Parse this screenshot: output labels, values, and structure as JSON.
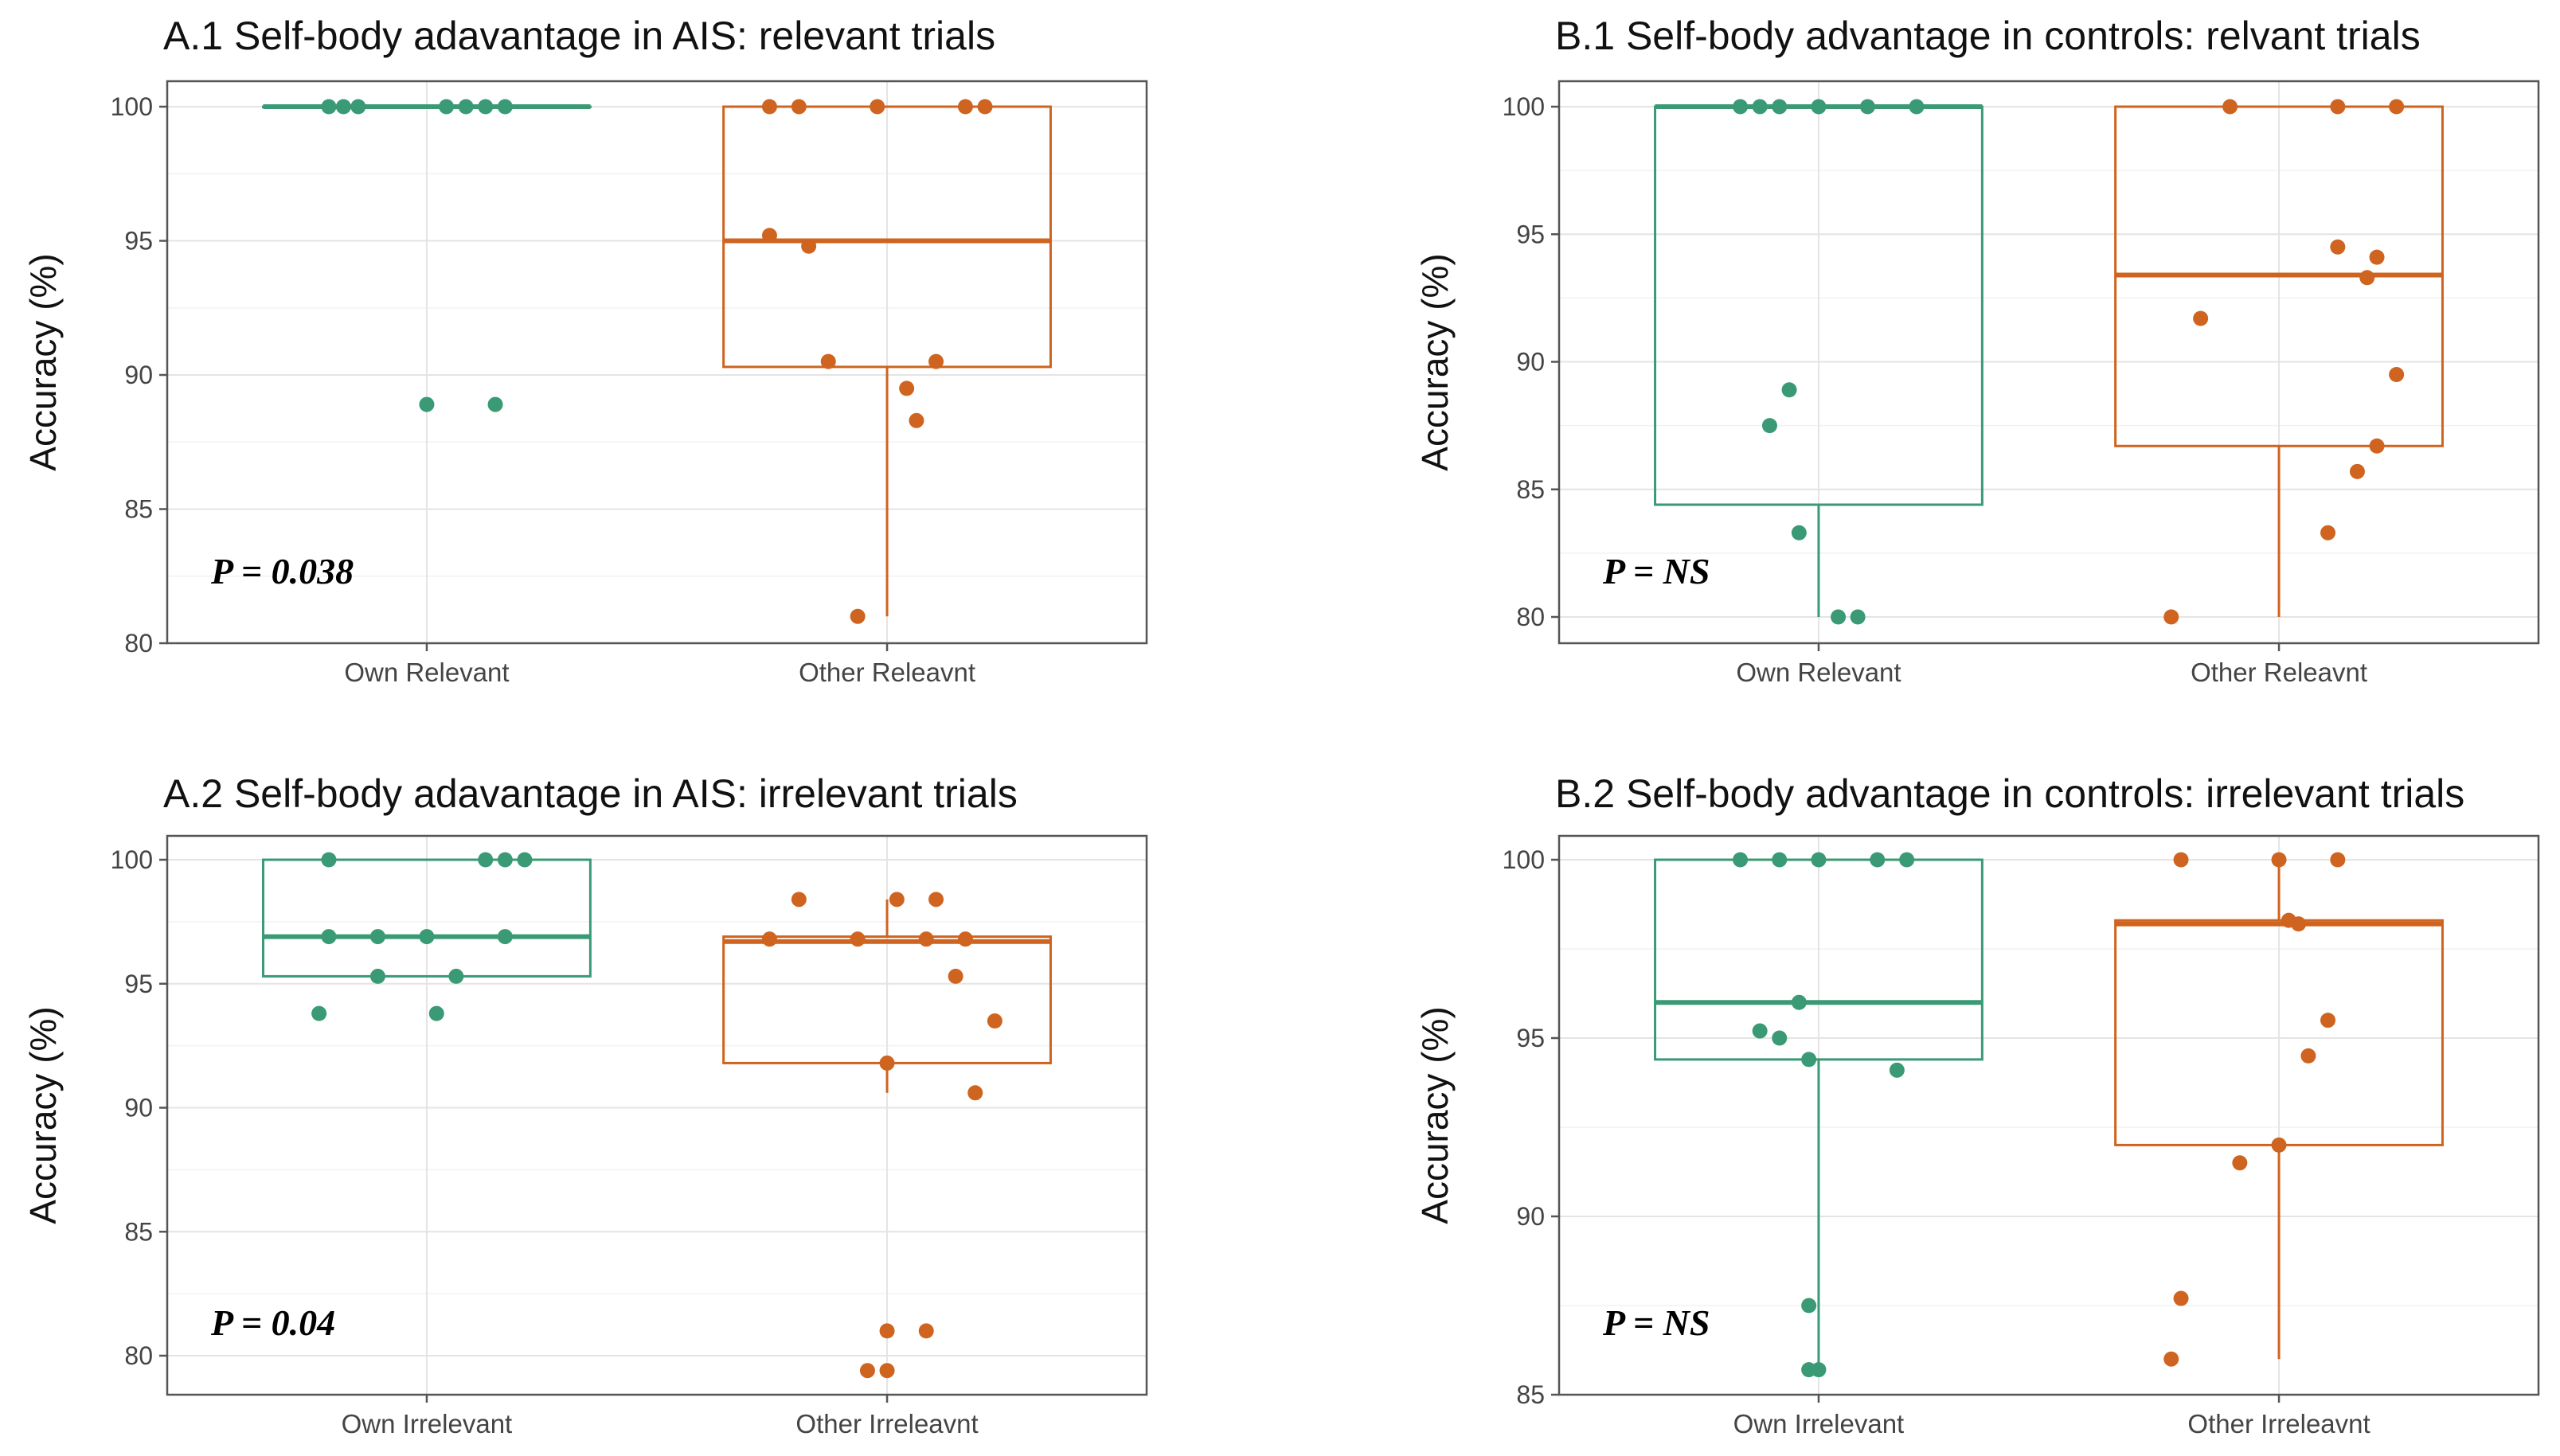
{
  "colors": {
    "own": "#3a9a76",
    "other": "#cf6420"
  },
  "chart_data": [
    {
      "type": "boxplot",
      "title": "A.1 Self-body adavantage in AIS: relevant trials",
      "ylabel": "Accuracy (%)",
      "xlabel": "",
      "ylim": [
        80,
        100
      ],
      "yticks": [
        80,
        85,
        90,
        95,
        100
      ],
      "annotation": "P = 0.038",
      "categories": [
        "Own Relevant",
        "Other Releavnt"
      ],
      "series": [
        {
          "name": "Own Relevant",
          "color_key": "own",
          "box": {
            "min": 100,
            "q1": 100,
            "median": 100,
            "q3": 100,
            "max": 100
          },
          "points": [
            {
              "x": -0.1,
              "y": 100
            },
            {
              "x": -0.085,
              "y": 100
            },
            {
              "x": -0.07,
              "y": 100
            },
            {
              "x": 0.02,
              "y": 100
            },
            {
              "x": 0.04,
              "y": 100
            },
            {
              "x": 0.06,
              "y": 100
            },
            {
              "x": 0.08,
              "y": 100
            },
            {
              "x": 0.0,
              "y": 88.9
            },
            {
              "x": 0.07,
              "y": 88.9
            }
          ]
        },
        {
          "name": "Other Releavnt",
          "color_key": "other",
          "box": {
            "min": 81,
            "q1": 90.3,
            "median": 95,
            "q3": 100,
            "max": 100
          },
          "points": [
            {
              "x": -0.12,
              "y": 100
            },
            {
              "x": -0.09,
              "y": 100
            },
            {
              "x": -0.01,
              "y": 100
            },
            {
              "x": 0.08,
              "y": 100
            },
            {
              "x": 0.1,
              "y": 100
            },
            {
              "x": -0.12,
              "y": 95.2
            },
            {
              "x": -0.08,
              "y": 94.8
            },
            {
              "x": -0.06,
              "y": 90.5
            },
            {
              "x": 0.05,
              "y": 90.5
            },
            {
              "x": 0.02,
              "y": 89.5
            },
            {
              "x": 0.03,
              "y": 88.3
            },
            {
              "x": -0.03,
              "y": 81
            }
          ]
        }
      ]
    },
    {
      "type": "boxplot",
      "title": "B.1 Self-body advantage in controls: relvant trials",
      "ylabel": "Accuracy (%)",
      "xlabel": "",
      "ylim": [
        80,
        100
      ],
      "yticks": [
        80,
        85,
        90,
        95,
        100
      ],
      "annotation": "P = NS",
      "categories": [
        "Own Relevant",
        "Other Releavnt"
      ],
      "series": [
        {
          "name": "Own Relevant",
          "color_key": "own",
          "box": {
            "min": 80,
            "q1": 84.4,
            "median": 100,
            "q3": 100,
            "max": 100
          },
          "points": [
            {
              "x": -0.08,
              "y": 100
            },
            {
              "x": -0.06,
              "y": 100
            },
            {
              "x": -0.04,
              "y": 100
            },
            {
              "x": 0.0,
              "y": 100
            },
            {
              "x": 0.05,
              "y": 100
            },
            {
              "x": 0.1,
              "y": 100
            },
            {
              "x": -0.03,
              "y": 88.9
            },
            {
              "x": -0.05,
              "y": 87.5
            },
            {
              "x": -0.02,
              "y": 83.3
            },
            {
              "x": 0.02,
              "y": 80
            },
            {
              "x": 0.04,
              "y": 80
            }
          ]
        },
        {
          "name": "Other Releavnt",
          "color_key": "other",
          "box": {
            "min": 80,
            "q1": 86.7,
            "median": 93.4,
            "q3": 100,
            "max": 100
          },
          "points": [
            {
              "x": -0.05,
              "y": 100
            },
            {
              "x": 0.06,
              "y": 100
            },
            {
              "x": 0.12,
              "y": 100
            },
            {
              "x": 0.06,
              "y": 94.5
            },
            {
              "x": 0.1,
              "y": 94.1
            },
            {
              "x": 0.09,
              "y": 93.3
            },
            {
              "x": -0.08,
              "y": 91.7
            },
            {
              "x": 0.12,
              "y": 89.5
            },
            {
              "x": 0.1,
              "y": 86.7
            },
            {
              "x": 0.08,
              "y": 85.7
            },
            {
              "x": 0.05,
              "y": 83.3
            },
            {
              "x": -0.11,
              "y": 80
            }
          ]
        }
      ]
    },
    {
      "type": "boxplot",
      "title": "A.2 Self-body adavantage in AIS: irrelevant trials",
      "ylabel": "Accuracy (%)",
      "xlabel": "",
      "ylim": [
        79,
        100
      ],
      "yticks": [
        80,
        85,
        90,
        95,
        100
      ],
      "annotation": "P = 0.04",
      "categories": [
        "Own Irrelevant",
        "Other Irreleavnt"
      ],
      "series": [
        {
          "name": "Own Irrelevant",
          "color_key": "own",
          "box": {
            "min": 95.3,
            "q1": 95.3,
            "median": 96.9,
            "q3": 100,
            "max": 100
          },
          "points": [
            {
              "x": -0.1,
              "y": 100
            },
            {
              "x": 0.06,
              "y": 100
            },
            {
              "x": 0.08,
              "y": 100
            },
            {
              "x": 0.1,
              "y": 100
            },
            {
              "x": -0.1,
              "y": 96.9
            },
            {
              "x": -0.05,
              "y": 96.9
            },
            {
              "x": 0.0,
              "y": 96.9
            },
            {
              "x": 0.08,
              "y": 96.9
            },
            {
              "x": -0.05,
              "y": 95.3
            },
            {
              "x": 0.03,
              "y": 95.3
            },
            {
              "x": -0.11,
              "y": 93.8
            },
            {
              "x": 0.01,
              "y": 93.8
            }
          ]
        },
        {
          "name": "Other Irreleavnt",
          "color_key": "other",
          "box": {
            "min": 90.6,
            "q1": 91.8,
            "median": 96.7,
            "q3": 96.9,
            "max": 98.4
          },
          "points": [
            {
              "x": -0.09,
              "y": 98.4
            },
            {
              "x": 0.01,
              "y": 98.4
            },
            {
              "x": 0.05,
              "y": 98.4
            },
            {
              "x": -0.12,
              "y": 96.8
            },
            {
              "x": -0.03,
              "y": 96.8
            },
            {
              "x": 0.04,
              "y": 96.8
            },
            {
              "x": 0.08,
              "y": 96.8
            },
            {
              "x": 0.07,
              "y": 95.3
            },
            {
              "x": 0.11,
              "y": 93.5
            },
            {
              "x": 0.0,
              "y": 91.8
            },
            {
              "x": 0.09,
              "y": 90.6
            },
            {
              "x": 0.0,
              "y": 81
            },
            {
              "x": 0.04,
              "y": 81
            },
            {
              "x": -0.02,
              "y": 79.4
            },
            {
              "x": 0.0,
              "y": 79.4
            }
          ]
        }
      ]
    },
    {
      "type": "boxplot",
      "title": "B.2 Self-body advantage in controls: irrelevant trials",
      "ylabel": "Accuracy (%)",
      "xlabel": "",
      "ylim": [
        85,
        100
      ],
      "yticks": [
        85,
        90,
        95,
        100
      ],
      "annotation": "P = NS",
      "categories": [
        "Own Irrelevant",
        "Other Irreleavnt"
      ],
      "series": [
        {
          "name": "Own Irrelevant",
          "color_key": "own",
          "box": {
            "min": 85.7,
            "q1": 94.4,
            "median": 96,
            "q3": 100,
            "max": 100
          },
          "points": [
            {
              "x": -0.08,
              "y": 100
            },
            {
              "x": -0.04,
              "y": 100
            },
            {
              "x": 0.0,
              "y": 100
            },
            {
              "x": 0.06,
              "y": 100
            },
            {
              "x": 0.09,
              "y": 100
            },
            {
              "x": -0.02,
              "y": 96
            },
            {
              "x": -0.06,
              "y": 95.2
            },
            {
              "x": -0.04,
              "y": 95
            },
            {
              "x": -0.01,
              "y": 94.4
            },
            {
              "x": 0.08,
              "y": 94.1
            },
            {
              "x": -0.01,
              "y": 87.5
            },
            {
              "x": -0.01,
              "y": 85.7
            },
            {
              "x": 0.0,
              "y": 85.7
            }
          ]
        },
        {
          "name": "Other Irreleavnt",
          "color_key": "other",
          "box": {
            "min": 86,
            "q1": 92,
            "median": 98.2,
            "q3": 98.3,
            "max": 100
          },
          "points": [
            {
              "x": -0.1,
              "y": 100
            },
            {
              "x": 0.0,
              "y": 100
            },
            {
              "x": 0.06,
              "y": 100
            },
            {
              "x": 0.01,
              "y": 98.3
            },
            {
              "x": 0.02,
              "y": 98.2
            },
            {
              "x": 0.05,
              "y": 95.5
            },
            {
              "x": 0.03,
              "y": 94.5
            },
            {
              "x": 0.0,
              "y": 92
            },
            {
              "x": -0.04,
              "y": 91.5
            },
            {
              "x": -0.1,
              "y": 87.7
            },
            {
              "x": -0.11,
              "y": 86
            }
          ]
        }
      ]
    }
  ]
}
